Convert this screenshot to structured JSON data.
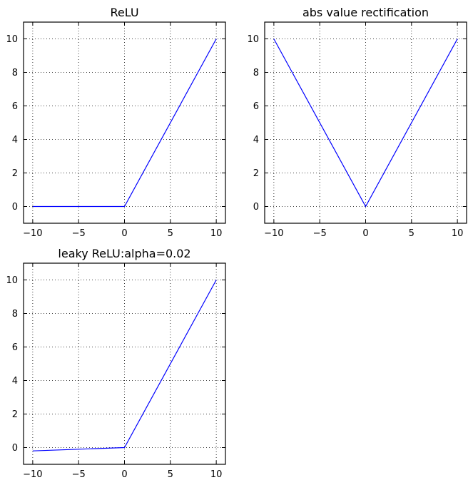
{
  "chart_data": [
    {
      "type": "line",
      "title": "ReLU",
      "xlabel": "",
      "ylabel": "",
      "xlim": [
        -11,
        11
      ],
      "ylim": [
        -1,
        11
      ],
      "xticks": [
        -10,
        -5,
        0,
        5,
        10
      ],
      "xtick_labels": [
        "−10",
        "−5",
        "0",
        "5",
        "10"
      ],
      "yticks": [
        0,
        2,
        4,
        6,
        8,
        10
      ],
      "ytick_labels": [
        "0",
        "2",
        "4",
        "6",
        "8",
        "10"
      ],
      "grid": true,
      "series_color": "#0000ff",
      "x": [
        -10,
        0,
        10
      ],
      "y": [
        0,
        0,
        10
      ]
    },
    {
      "type": "line",
      "title": "abs value rectification",
      "xlabel": "",
      "ylabel": "",
      "xlim": [
        -11,
        11
      ],
      "ylim": [
        -1,
        11
      ],
      "xticks": [
        -10,
        -5,
        0,
        5,
        10
      ],
      "xtick_labels": [
        "−10",
        "−5",
        "0",
        "5",
        "10"
      ],
      "yticks": [
        0,
        2,
        4,
        6,
        8,
        10
      ],
      "ytick_labels": [
        "0",
        "2",
        "4",
        "6",
        "8",
        "10"
      ],
      "grid": true,
      "series_color": "#0000ff",
      "x": [
        -10,
        0,
        10
      ],
      "y": [
        10,
        0,
        10
      ]
    },
    {
      "type": "line",
      "title": "leaky ReLU:alpha=0.02",
      "xlabel": "",
      "ylabel": "",
      "xlim": [
        -11,
        11
      ],
      "ylim": [
        -1,
        11
      ],
      "xticks": [
        -10,
        -5,
        0,
        5,
        10
      ],
      "xtick_labels": [
        "−10",
        "−5",
        "0",
        "5",
        "10"
      ],
      "yticks": [
        0,
        2,
        4,
        6,
        8,
        10
      ],
      "ytick_labels": [
        "0",
        "2",
        "4",
        "6",
        "8",
        "10"
      ],
      "grid": true,
      "series_color": "#0000ff",
      "x": [
        -10,
        0,
        10
      ],
      "y": [
        -0.2,
        0,
        10
      ]
    }
  ]
}
